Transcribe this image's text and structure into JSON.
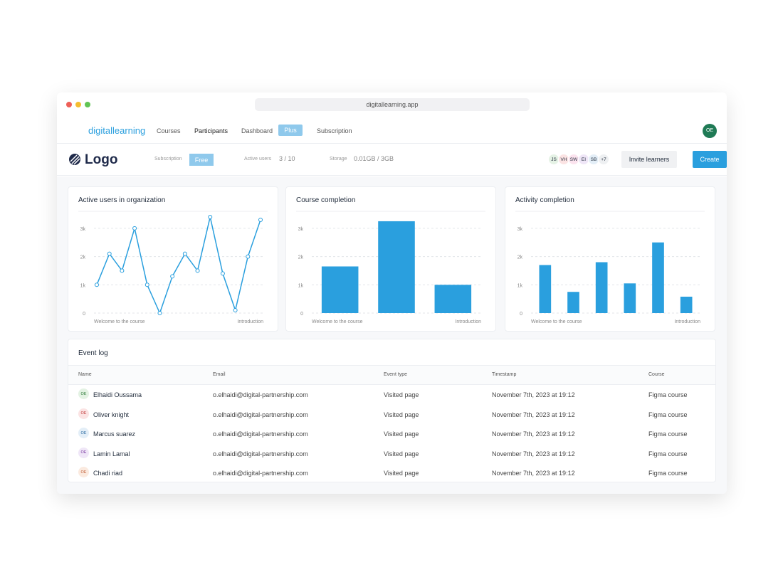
{
  "browser": {
    "url": "digitallearning.app"
  },
  "nav": {
    "brand": "digitallearning",
    "items": [
      "Courses",
      "Participants",
      "Dashboard"
    ],
    "plus": "Plus",
    "subscription": "Subscription",
    "avatar": "OE"
  },
  "toolbar": {
    "logo": "Logo",
    "subscription_label": "Subscription",
    "plan": "Free",
    "active_users_label": "Active users",
    "active_users": "3 / 10",
    "storage_label": "Storage",
    "storage": "0.01GB / 3GB",
    "avatars": [
      "JS",
      "VH",
      "SW",
      "EI",
      "SB"
    ],
    "more": "+7",
    "invite": "Invite learners",
    "create": "Create"
  },
  "chart_data": [
    {
      "type": "line",
      "title": "Active users in organization",
      "color": "#2a9fde",
      "grid": true,
      "categories": [
        "Welcome to the course",
        null,
        null,
        null,
        null,
        null,
        null,
        null,
        null,
        null,
        null,
        null,
        null,
        "Introduction"
      ],
      "values": [
        1000,
        2100,
        1500,
        3000,
        1000,
        0,
        1300,
        2100,
        1500,
        3400,
        1400,
        100,
        2000,
        3300
      ],
      "ylim": [
        0,
        3500
      ],
      "yticks": [
        0,
        {
          "value": 1000,
          "label": "1k"
        },
        {
          "value": 2000,
          "label": "2k"
        },
        {
          "value": 3000,
          "label": "3k"
        }
      ]
    },
    {
      "type": "bar",
      "title": "Course completion",
      "color": "#2a9fde",
      "grid": true,
      "categories": [
        "Welcome to the course",
        null,
        "Introduction"
      ],
      "values": [
        1650,
        3250,
        1000
      ],
      "ylim": [
        0,
        3500
      ],
      "yticks": [
        0,
        {
          "value": 1000,
          "label": "1k"
        },
        {
          "value": 2000,
          "label": "2k"
        },
        {
          "value": 3000,
          "label": "3k"
        }
      ]
    },
    {
      "type": "bar",
      "title": "Activity completion",
      "color": "#2a9fde",
      "grid": true,
      "categories": [
        "Welcome to the course",
        null,
        null,
        null,
        null,
        "Introduction"
      ],
      "values": [
        1700,
        750,
        1800,
        1050,
        2500,
        580
      ],
      "ylim": [
        0,
        3500
      ],
      "yticks": [
        0,
        {
          "value": 1000,
          "label": "1k"
        },
        {
          "value": 2000,
          "label": "2k"
        },
        {
          "value": 3000,
          "label": "3k"
        }
      ]
    }
  ],
  "event_log": {
    "title": "Event log",
    "columns": [
      "Name",
      "Email",
      "Event type",
      "Timestamp",
      "Course"
    ],
    "rows": [
      [
        "OE",
        "Elhaidi Oussama",
        "o.elhaidi@digital-partnership.com",
        "Visited page",
        "November 7th, 2023 at 19:12",
        "Figma course"
      ],
      [
        "OE",
        "Oliver knight",
        "o.elhaidi@digital-partnership.com",
        "Visited page",
        "November 7th, 2023 at 19:12",
        "Figma course"
      ],
      [
        "OE",
        "Marcus suarez",
        "o.elhaidi@digital-partnership.com",
        "Visited page",
        "November 7th, 2023 at 19:12",
        "Figma course"
      ],
      [
        "OE",
        "Lamin Lamal",
        "o.elhaidi@digital-partnership.com",
        "Visited page",
        "November 7th, 2023 at 19:12",
        "Figma course"
      ],
      [
        "OE",
        "Chadi riad",
        "o.elhaidi@digital-partnership.com",
        "Visited page",
        "November 7th, 2023 at 19:12",
        "Figma course"
      ]
    ]
  }
}
